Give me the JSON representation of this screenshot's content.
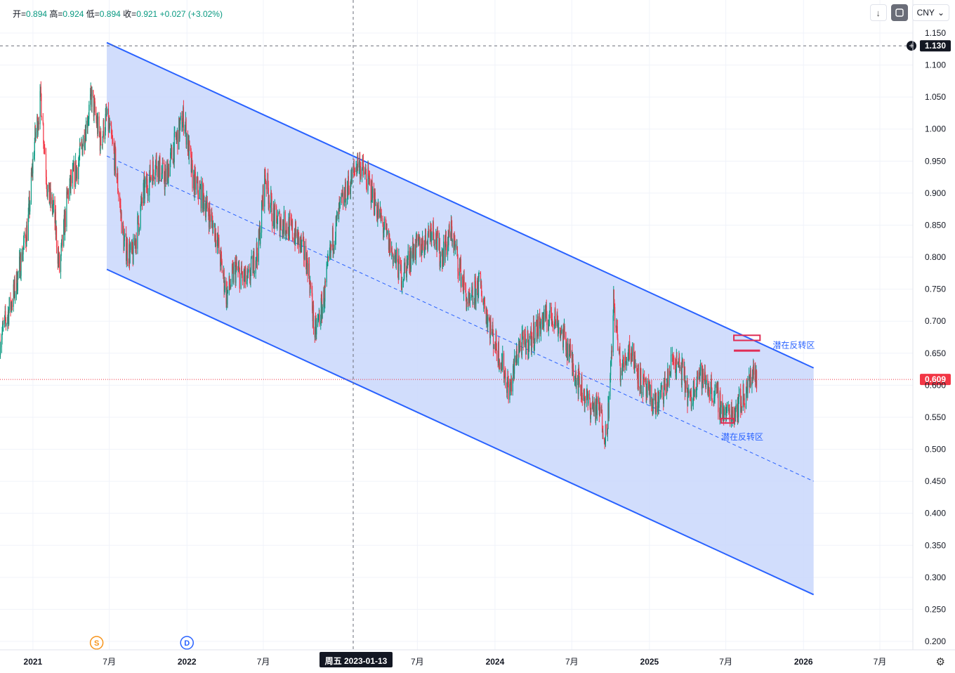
{
  "legend": {
    "open_label": "开=",
    "open": "0.894",
    "high_label": "高=",
    "high": "0.924",
    "low_label": "低=",
    "low": "0.894",
    "close_label": "收=",
    "close": "0.921",
    "change": "+0.027 (+3.02%)"
  },
  "toolbar": {
    "currency": "CNY",
    "down_arrow": "↓",
    "chevron": "⌄"
  },
  "crosshair": {
    "price": "1.130",
    "date": "周五 2023-01-13"
  },
  "last_price": "0.609",
  "events": [
    {
      "label": "S",
      "date": "2021-06-01",
      "color": "#f7931a"
    },
    {
      "label": "D",
      "date": "2022-01-01",
      "color": "#2962ff"
    }
  ],
  "colors": {
    "up": "#089981",
    "down": "#f23645",
    "channel": "#2962ff",
    "channel_fill": "#c9d7fb",
    "zone": "#e02d55",
    "annotation": "#2962ff"
  },
  "chart_data": {
    "type": "candlestick",
    "title": "",
    "y_axis": {
      "ylim": [
        0.2,
        1.15
      ],
      "ticks": [
        "1.150",
        "1.100",
        "1.050",
        "1.000",
        "0.950",
        "0.900",
        "0.850",
        "0.800",
        "0.750",
        "0.700",
        "0.650",
        "0.600",
        "0.550",
        "0.500",
        "0.450",
        "0.400",
        "0.350",
        "0.300",
        "0.250",
        "0.200"
      ]
    },
    "x_axis": {
      "xlim": [
        "2020-10-15",
        "2026-12-31"
      ],
      "ticks": [
        {
          "date": "2021-01-01",
          "label": "2021"
        },
        {
          "date": "2021-07-01",
          "label": "7月"
        },
        {
          "date": "2022-01-01",
          "label": "2022"
        },
        {
          "date": "2022-07-01",
          "label": "7月"
        },
        {
          "date": "2023-07-01",
          "label": "7月"
        },
        {
          "date": "2024-01-01",
          "label": "2024"
        },
        {
          "date": "2024-07-01",
          "label": "7月"
        },
        {
          "date": "2025-01-01",
          "label": "2025"
        },
        {
          "date": "2025-07-01",
          "label": "7月"
        },
        {
          "date": "2026-01-01",
          "label": "2026"
        },
        {
          "date": "2026-07-01",
          "label": "7月"
        }
      ]
    },
    "price_path": [
      [
        "2020-10-15",
        0.67
      ],
      [
        "2020-11-20",
        0.75
      ],
      [
        "2020-12-20",
        0.85
      ],
      [
        "2021-01-05",
        0.98
      ],
      [
        "2021-01-20",
        1.05
      ],
      [
        "2021-02-05",
        0.9
      ],
      [
        "2021-02-20",
        0.87
      ],
      [
        "2021-03-05",
        0.78
      ],
      [
        "2021-03-25",
        0.9
      ],
      [
        "2021-04-20",
        0.95
      ],
      [
        "2021-05-20",
        1.05
      ],
      [
        "2021-06-10",
        0.98
      ],
      [
        "2021-06-25",
        1.02
      ],
      [
        "2021-07-15",
        0.95
      ],
      [
        "2021-08-05",
        0.82
      ],
      [
        "2021-08-25",
        0.8
      ],
      [
        "2021-09-20",
        0.9
      ],
      [
        "2021-10-20",
        0.95
      ],
      [
        "2021-11-10",
        0.92
      ],
      [
        "2021-12-05",
        0.98
      ],
      [
        "2021-12-25",
        1.02
      ],
      [
        "2022-01-15",
        0.92
      ],
      [
        "2022-02-10",
        0.89
      ],
      [
        "2022-03-10",
        0.84
      ],
      [
        "2022-04-05",
        0.74
      ],
      [
        "2022-04-25",
        0.78
      ],
      [
        "2022-05-25",
        0.76
      ],
      [
        "2022-06-20",
        0.82
      ],
      [
        "2022-07-05",
        0.93
      ],
      [
        "2022-07-25",
        0.86
      ],
      [
        "2022-08-25",
        0.85
      ],
      [
        "2022-09-20",
        0.83
      ],
      [
        "2022-10-15",
        0.79
      ],
      [
        "2022-10-31",
        0.68
      ],
      [
        "2022-11-20",
        0.73
      ],
      [
        "2022-12-10",
        0.82
      ],
      [
        "2023-01-01",
        0.88
      ],
      [
        "2023-01-25",
        0.92
      ],
      [
        "2023-02-10",
        0.95
      ],
      [
        "2023-03-05",
        0.92
      ],
      [
        "2023-03-25",
        0.88
      ],
      [
        "2023-04-25",
        0.82
      ],
      [
        "2023-05-25",
        0.77
      ],
      [
        "2023-06-20",
        0.81
      ],
      [
        "2023-07-15",
        0.82
      ],
      [
        "2023-08-05",
        0.85
      ],
      [
        "2023-08-25",
        0.8
      ],
      [
        "2023-09-20",
        0.84
      ],
      [
        "2023-10-10",
        0.78
      ],
      [
        "2023-10-31",
        0.72
      ],
      [
        "2023-11-25",
        0.76
      ],
      [
        "2023-12-25",
        0.68
      ],
      [
        "2024-01-15",
        0.64
      ],
      [
        "2024-02-05",
        0.59
      ],
      [
        "2024-02-25",
        0.66
      ],
      [
        "2024-03-25",
        0.67
      ],
      [
        "2024-04-20",
        0.7
      ],
      [
        "2024-05-20",
        0.71
      ],
      [
        "2024-06-20",
        0.66
      ],
      [
        "2024-07-20",
        0.6
      ],
      [
        "2024-08-10",
        0.57
      ],
      [
        "2024-09-05",
        0.56
      ],
      [
        "2024-09-20",
        0.52
      ],
      [
        "2024-09-30",
        0.6
      ],
      [
        "2024-10-08",
        0.73
      ],
      [
        "2024-10-25",
        0.62
      ],
      [
        "2024-11-15",
        0.66
      ],
      [
        "2024-12-15",
        0.6
      ],
      [
        "2024-12-31",
        0.58
      ],
      [
        "2025-01-20",
        0.57
      ],
      [
        "2025-02-10",
        0.6
      ],
      [
        "2025-02-25",
        0.64
      ],
      [
        "2025-03-20",
        0.62
      ],
      [
        "2025-04-08",
        0.57
      ],
      [
        "2025-04-25",
        0.62
      ],
      [
        "2025-05-20",
        0.6
      ],
      [
        "2025-06-10",
        0.58
      ],
      [
        "2025-06-28",
        0.555
      ],
      [
        "2025-07-20",
        0.56
      ],
      [
        "2025-08-10",
        0.58
      ],
      [
        "2025-08-25",
        0.6
      ],
      [
        "2025-09-05",
        0.63
      ],
      [
        "2025-09-12",
        0.6
      ]
    ],
    "channel": {
      "upper": [
        [
          "2021-06-25",
          1.135
        ],
        [
          "2026-01-25",
          0.627
        ]
      ],
      "lower": [
        [
          "2021-06-25",
          0.781
        ],
        [
          "2026-01-25",
          0.273
        ]
      ],
      "mid": [
        [
          "2021-06-25",
          0.958
        ],
        [
          "2026-01-25",
          0.45
        ]
      ]
    },
    "zones": [
      {
        "label": "潜在反转区",
        "y_top": 0.678,
        "y_bottom": 0.67,
        "x_start": "2025-07-20",
        "x_end": "2025-09-20"
      },
      {
        "label": "潜在反转区",
        "y_top": 0.548,
        "y_bottom": 0.541,
        "x_start": "2025-06-20",
        "x_end": "2025-07-20"
      }
    ],
    "zone_line": {
      "y": 0.654,
      "x_start": "2025-07-20",
      "x_end": "2025-09-20"
    }
  }
}
